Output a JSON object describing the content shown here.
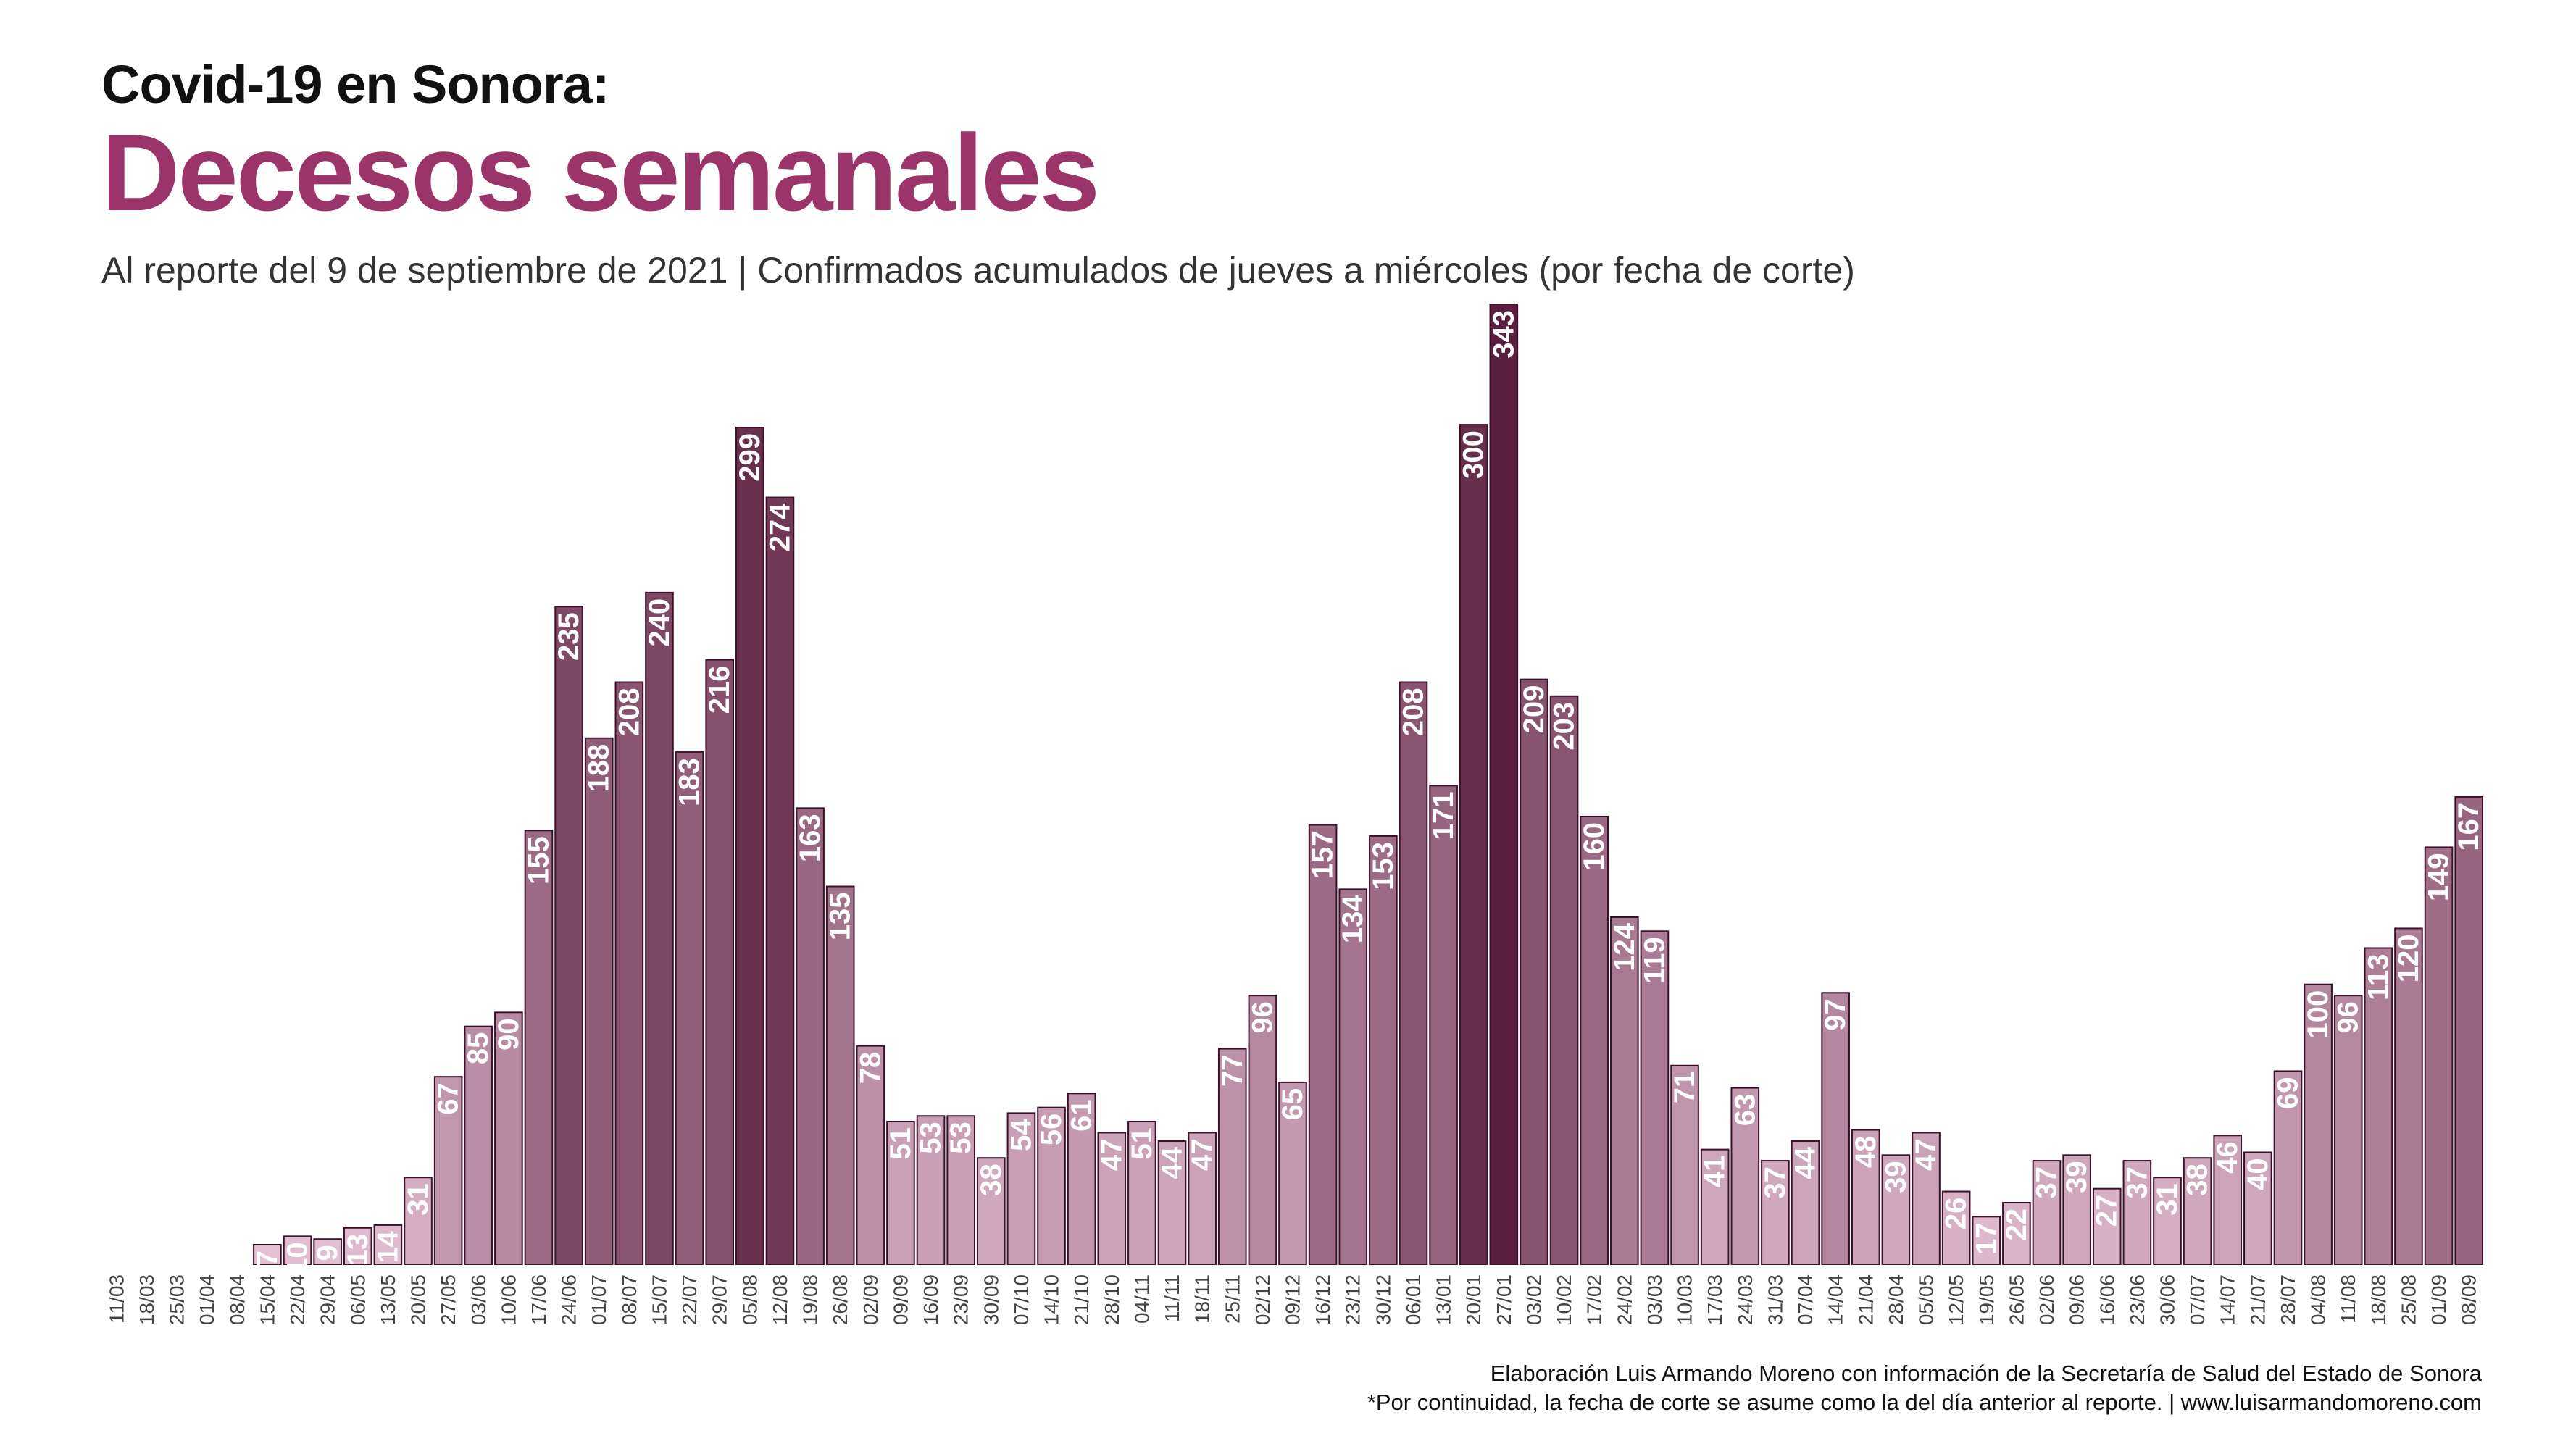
{
  "header": {
    "kicker": "Covid-19 en Sonora:",
    "title": "Decesos semanales",
    "subtitle": "Al reporte del 9 de septiembre de 2021 | Confirmados acumulados de jueves a miércoles (por fecha de corte)"
  },
  "footer": {
    "line1": "Elaboración Luis Armando Moreno con información de la Secretaría de Salud del Estado de Sonora",
    "line2": "*Por continuidad, la fecha de corte se asume como la del día anterior al reporte. | www.luisarmandomoreno.com"
  },
  "colors": {
    "light": "#ecc9dc",
    "dark": "#5a1f3e",
    "outline": "#3d1029",
    "label": "#ffffff",
    "axis_text": "#444444"
  },
  "chart_data": {
    "type": "bar",
    "categories": [
      "11/03",
      "18/03",
      "25/03",
      "01/04",
      "08/04",
      "15/04",
      "22/04",
      "29/04",
      "06/05",
      "13/05",
      "20/05",
      "27/05",
      "03/06",
      "10/06",
      "17/06",
      "24/06",
      "01/07",
      "08/07",
      "15/07",
      "22/07",
      "29/07",
      "05/08",
      "12/08",
      "19/08",
      "26/08",
      "02/09",
      "09/09",
      "16/09",
      "23/09",
      "30/09",
      "07/10",
      "14/10",
      "21/10",
      "28/10",
      "04/11",
      "11/11",
      "18/11",
      "25/11",
      "02/12",
      "09/12",
      "16/12",
      "23/12",
      "30/12",
      "06/01",
      "13/01",
      "20/01",
      "27/01",
      "03/02",
      "10/02",
      "17/02",
      "24/02",
      "03/03",
      "10/03",
      "17/03",
      "24/03",
      "31/03",
      "07/04",
      "14/04",
      "21/04",
      "28/04",
      "05/05",
      "12/05",
      "19/05",
      "26/05",
      "02/06",
      "09/06",
      "16/06",
      "23/06",
      "30/06",
      "07/07",
      "14/07",
      "21/07",
      "28/07",
      "04/08",
      "11/08",
      "18/08",
      "25/08",
      "01/09",
      "08/09"
    ],
    "values": [
      0,
      0,
      0,
      0,
      0,
      7,
      10,
      9,
      13,
      14,
      31,
      67,
      85,
      90,
      155,
      235,
      188,
      208,
      240,
      183,
      216,
      299,
      274,
      163,
      135,
      78,
      51,
      53,
      53,
      38,
      54,
      56,
      61,
      47,
      51,
      44,
      47,
      77,
      96,
      65,
      157,
      134,
      153,
      208,
      171,
      300,
      343,
      209,
      203,
      160,
      124,
      119,
      71,
      41,
      63,
      37,
      44,
      97,
      48,
      39,
      47,
      26,
      17,
      22,
      37,
      39,
      27,
      37,
      31,
      38,
      46,
      40,
      69,
      100,
      96,
      113,
      120,
      149,
      167
    ],
    "ylim": [
      0,
      343
    ],
    "grid": false,
    "data_labels": true,
    "legend": "none"
  }
}
